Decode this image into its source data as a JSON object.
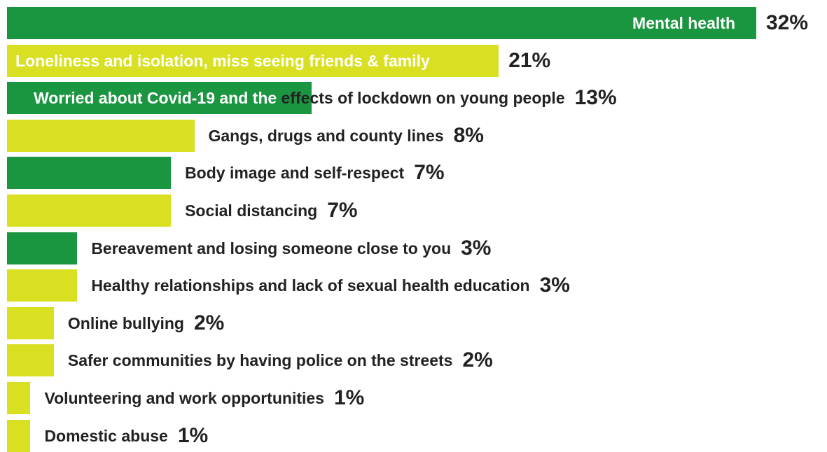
{
  "chart_data": {
    "type": "bar",
    "orientation": "horizontal",
    "categories": [
      "Mental health",
      "Loneliness and isolation, miss seeing friends & family",
      "Worried about Covid-19 and the effects of lockdown on young people",
      "Gangs, drugs and county lines",
      "Body image and self-respect",
      "Social distancing",
      "Bereavement and losing someone close to you",
      "Healthy relationships and lack of sexual health education",
      "Online bullying",
      "Safer communities by having police on the streets",
      "Volunteering and work opportunities",
      "Domestic abuse"
    ],
    "values": [
      32,
      21,
      13,
      8,
      7,
      7,
      3,
      3,
      2,
      2,
      1,
      1
    ],
    "value_labels": [
      "32%",
      "21%",
      "13%",
      "8%",
      "7%",
      "7%",
      "3%",
      "3%",
      "2%",
      "2%",
      "1%",
      "1%"
    ],
    "bar_colors": [
      "#1a9640",
      "#d9e021",
      "#1a9640",
      "#d9e021",
      "#1a9640",
      "#d9e021",
      "#1a9640",
      "#d9e021",
      "#d9e021",
      "#d9e021",
      "#d9e021",
      "#d9e021"
    ],
    "label_text_split": [
      "Worried about Covid-19 and the",
      " effects of lockdown on young people"
    ],
    "title": "",
    "xlabel": "",
    "ylabel": "",
    "xlim": [
      0,
      32
    ],
    "grid": false,
    "legend": "none"
  },
  "colors": {
    "green": "#1a9640",
    "yellow": "#d9e021",
    "text_dark": "#222222",
    "text_light": "#ffffff"
  }
}
